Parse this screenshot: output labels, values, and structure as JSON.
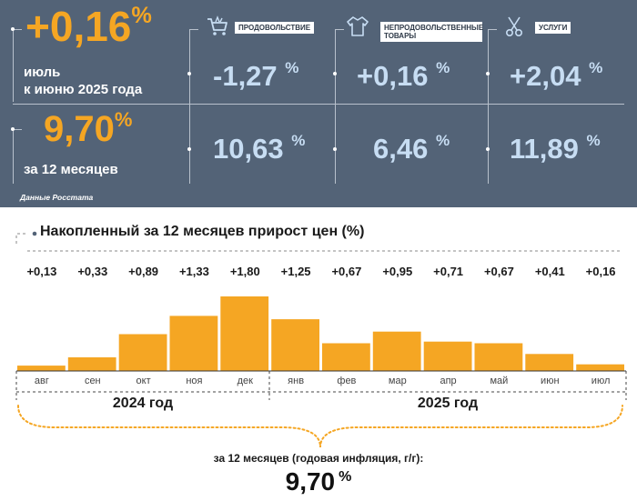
{
  "header": {
    "monthly": {
      "value": "+0,16",
      "unit": "%",
      "label_line1": "июль",
      "label_line2": "к июню 2025 года"
    },
    "yearly": {
      "value": "9,70",
      "unit": "%",
      "label": "за 12 месяцев"
    },
    "source": "Данные Росстата"
  },
  "categories": [
    {
      "name": "ПРОДОВОЛЬСТВИЕ",
      "icon": "shopping-cart-icon",
      "monthly": "-1,27",
      "yearly": "10,63"
    },
    {
      "name": "НЕПРОДОВОЛЬСТВЕННЫЕ ТОВАРЫ",
      "icon": "clothing-icon",
      "monthly": "+0,16",
      "yearly": "6,46"
    },
    {
      "name": "УСЛУГИ",
      "icon": "scissors-icon",
      "monthly": "+2,04",
      "yearly": "11,89"
    }
  ],
  "unit": "%",
  "colors": {
    "panel": "#536377",
    "accent": "#f5a623",
    "stat": "#c7ddf3"
  },
  "chart_data": {
    "type": "bar",
    "title": "Накопленный за 12 месяцев прирост цен (%)",
    "categories": [
      "авг",
      "сен",
      "окт",
      "ноя",
      "дек",
      "янв",
      "фев",
      "мар",
      "апр",
      "май",
      "июн",
      "июл"
    ],
    "values": [
      0.13,
      0.33,
      0.89,
      1.33,
      1.8,
      1.25,
      0.67,
      0.95,
      0.71,
      0.67,
      0.41,
      0.16
    ],
    "value_labels": [
      "+0,13",
      "+0,33",
      "+0,89",
      "+1,33",
      "+1,80",
      "+1,25",
      "+0,67",
      "+0,95",
      "+0,71",
      "+0,67",
      "+0,41",
      "+0,16"
    ],
    "years": [
      "2024 год",
      "2025 год"
    ],
    "ylim": [
      0,
      1.8
    ],
    "total_label": "за 12 месяцев (годовая инфляция, г/г):",
    "total_value": "9,70",
    "total_unit": "%"
  }
}
